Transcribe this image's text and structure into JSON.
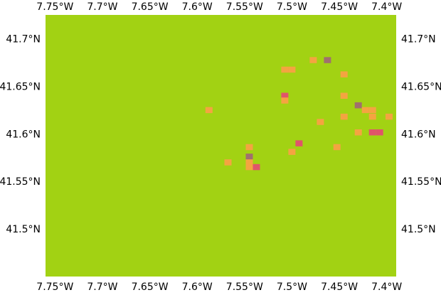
{
  "map": {
    "projection": "lat-lon grid",
    "lon_range": [
      -7.76,
      -7.39
    ],
    "lat_range": [
      41.45,
      41.725
    ],
    "background_color": "#a2d213",
    "top_lon_labels": [
      "7.75°W",
      "7.7°W",
      "7.65°W",
      "7.6°W",
      "7.55°W",
      "7.5°W",
      "7.45°W",
      "7.4°W"
    ],
    "bottom_lon_labels": [
      "7.75°W",
      "7.7°W",
      "7.65°W",
      "7.6°W",
      "7.55°W",
      "7.5°W",
      "7.45°W",
      "7.4°W"
    ],
    "left_lat_labels": [
      "41.7°N",
      "41.65°N",
      "41.6°N",
      "41.55°N",
      "41.5°N"
    ],
    "right_lat_labels": [
      "41.7°N",
      "41.65°N",
      "41.6°N",
      "41.55°N",
      "41.5°N"
    ],
    "lon_tick_values": [
      -7.75,
      -7.7,
      -7.65,
      -7.6,
      -7.55,
      -7.5,
      -7.45,
      -7.4
    ],
    "lat_tick_values": [
      41.7,
      41.65,
      41.6,
      41.55,
      41.5
    ],
    "cell_size_deg": 0.0075,
    "category_colors": {
      "orange": "#f4a441",
      "red": "#e0556a",
      "purple": "#a0706e"
    },
    "cells": [
      {
        "lon": -7.4775,
        "lat": 41.6775,
        "cat": "orange"
      },
      {
        "lon": -7.4625,
        "lat": 41.6775,
        "cat": "purple"
      },
      {
        "lon": -7.5075,
        "lat": 41.6675,
        "cat": "orange"
      },
      {
        "lon": -7.5,
        "lat": 41.6675,
        "cat": "orange"
      },
      {
        "lon": -7.445,
        "lat": 41.6625,
        "cat": "orange"
      },
      {
        "lon": -7.5075,
        "lat": 41.64,
        "cat": "red"
      },
      {
        "lon": -7.5075,
        "lat": 41.635,
        "cat": "orange"
      },
      {
        "lon": -7.445,
        "lat": 41.64,
        "cat": "orange"
      },
      {
        "lon": -7.43,
        "lat": 41.63,
        "cat": "purple"
      },
      {
        "lon": -7.4225,
        "lat": 41.625,
        "cat": "orange"
      },
      {
        "lon": -7.415,
        "lat": 41.625,
        "cat": "orange"
      },
      {
        "lon": -7.415,
        "lat": 41.618,
        "cat": "orange"
      },
      {
        "lon": -7.3975,
        "lat": 41.618,
        "cat": "orange"
      },
      {
        "lon": -7.5875,
        "lat": 41.625,
        "cat": "orange"
      },
      {
        "lon": -7.445,
        "lat": 41.618,
        "cat": "orange"
      },
      {
        "lon": -7.47,
        "lat": 41.6125,
        "cat": "orange"
      },
      {
        "lon": -7.43,
        "lat": 41.6015,
        "cat": "orange"
      },
      {
        "lon": -7.415,
        "lat": 41.6015,
        "cat": "red"
      },
      {
        "lon": -7.4075,
        "lat": 41.6015,
        "cat": "red"
      },
      {
        "lon": -7.4925,
        "lat": 41.59,
        "cat": "red"
      },
      {
        "lon": -7.4525,
        "lat": 41.586,
        "cat": "orange"
      },
      {
        "lon": -7.545,
        "lat": 41.586,
        "cat": "orange"
      },
      {
        "lon": -7.5,
        "lat": 41.581,
        "cat": "orange"
      },
      {
        "lon": -7.545,
        "lat": 41.576,
        "cat": "purple"
      },
      {
        "lon": -7.5675,
        "lat": 41.57,
        "cat": "orange"
      },
      {
        "lon": -7.545,
        "lat": 41.57,
        "cat": "orange"
      },
      {
        "lon": -7.545,
        "lat": 41.565,
        "cat": "orange"
      },
      {
        "lon": -7.5375,
        "lat": 41.565,
        "cat": "red"
      }
    ]
  }
}
